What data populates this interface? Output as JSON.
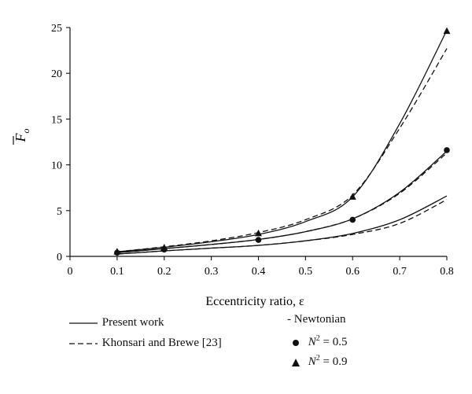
{
  "chart_data": {
    "type": "line",
    "xlabel": "Eccentricity ratio, ε",
    "ylabel_symbol": "F",
    "ylabel_subscript": "o",
    "xlim": [
      0,
      0.8
    ],
    "ylim": [
      0,
      25
    ],
    "xticks": [
      "0",
      "0.1",
      "0.2",
      "0.3",
      "0.4",
      "0.5",
      "0.6",
      "0.7",
      "0.8"
    ],
    "yticks": [
      "0",
      "5",
      "10",
      "15",
      "20",
      "25"
    ],
    "grid": false,
    "series": [
      {
        "group": "Newtonian",
        "style": "solid",
        "marker": "none",
        "x": [
          0.1,
          0.2,
          0.3,
          0.4,
          0.5,
          0.6,
          0.7,
          0.8
        ],
        "y": [
          0.25,
          0.6,
          0.9,
          1.2,
          1.7,
          2.5,
          4.0,
          6.6
        ]
      },
      {
        "group": "Newtonian",
        "style": "dashed",
        "marker": "none",
        "x": [
          0.1,
          0.2,
          0.3,
          0.4,
          0.5,
          0.6,
          0.7,
          0.8
        ],
        "y": [
          0.25,
          0.6,
          0.9,
          1.2,
          1.7,
          2.4,
          3.6,
          6.2
        ]
      },
      {
        "group": "N2=0.5",
        "style": "solid",
        "marker": "none",
        "x": [
          0.1,
          0.2,
          0.3,
          0.4,
          0.5,
          0.6,
          0.7,
          0.8
        ],
        "y": [
          0.4,
          0.85,
          1.3,
          1.85,
          2.7,
          4.1,
          7.0,
          11.5
        ]
      },
      {
        "group": "N2=0.5",
        "style": "dashed",
        "marker": "none",
        "x": [
          0.1,
          0.2,
          0.3,
          0.4,
          0.5,
          0.6,
          0.7,
          0.8
        ],
        "y": [
          0.4,
          0.85,
          1.3,
          1.85,
          2.7,
          4.1,
          6.9,
          11.3
        ]
      },
      {
        "group": "N2=0.5",
        "style": "none",
        "marker": "circle",
        "x": [
          0.1,
          0.2,
          0.4,
          0.6,
          0.8
        ],
        "y": [
          0.4,
          0.75,
          1.8,
          4.0,
          11.6
        ]
      },
      {
        "group": "N2=0.9",
        "style": "solid",
        "marker": "none",
        "x": [
          0.1,
          0.2,
          0.3,
          0.4,
          0.5,
          0.6,
          0.7,
          0.8
        ],
        "y": [
          0.5,
          1.0,
          1.6,
          2.4,
          3.8,
          6.5,
          14.5,
          24.7
        ]
      },
      {
        "group": "N2=0.9",
        "style": "dashed",
        "marker": "none",
        "x": [
          0.1,
          0.2,
          0.3,
          0.4,
          0.5,
          0.6,
          0.7,
          0.8
        ],
        "y": [
          0.5,
          1.05,
          1.7,
          2.6,
          4.0,
          6.7,
          14.0,
          22.7
        ]
      },
      {
        "group": "N2=0.9",
        "style": "none",
        "marker": "triangle",
        "x": [
          0.1,
          0.2,
          0.4,
          0.6,
          0.8
        ],
        "y": [
          0.5,
          0.95,
          2.5,
          6.5,
          24.6
        ]
      }
    ]
  },
  "legend": {
    "present_work": "Present work",
    "khonsari": "Khonsari and Brewe [23]",
    "newtonian": "- Newtonian",
    "n05_sym": "N",
    "n05_sup": "2",
    "n05_val": " = 0.5",
    "n09_sym": "N",
    "n09_sup": "2",
    "n09_val": " = 0.9"
  }
}
